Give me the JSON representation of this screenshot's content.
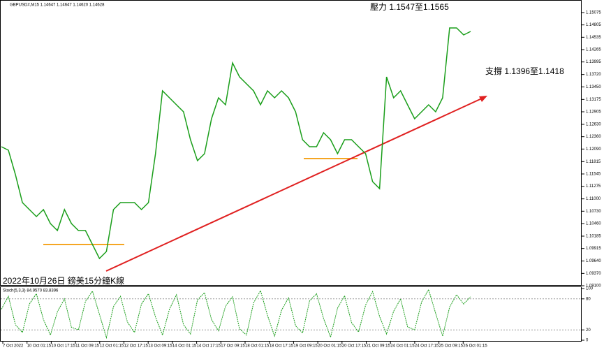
{
  "chart_data": {
    "type": "line",
    "title": "GBPUSD#,M15  1.14647 1.14647 1.14620 1.14628",
    "annotations": [
      "壓力 1.1547至1.1565",
      "支撐 1.1396至1.1418",
      "2022年10月26日 鎊美15分鐘K線"
    ],
    "xticks": [
      "7 Oct 2022",
      "10 Oct 01:15",
      "10 Oct 17:15",
      "11 Oct 09:15",
      "12 Oct 01:15",
      "12 Oct 17:15",
      "13 Oct 09:15",
      "14 Oct 01:15",
      "14 Oct 17:15",
      "17 Oct 09:15",
      "18 Oct 01:15",
      "18 Oct 17:15",
      "19 Oct 09:15",
      "20 Oct 01:15",
      "20 Oct 17:15",
      "21 Oct 09:15",
      "24 Oct 01:15",
      "24 Oct 17:15",
      "25 Oct 09:15",
      "26 Oct 01:15"
    ],
    "series": [
      {
        "color": "#1a9e1a",
        "values": [
          1.12141,
          1.12065,
          1.1153,
          1.10919,
          1.10766,
          1.10613,
          1.10766,
          1.1046,
          1.10307,
          1.10766,
          1.1046,
          1.10307,
          1.10307,
          1.10002,
          1.09696,
          1.09849,
          1.10766,
          1.10919,
          1.10919,
          1.10919,
          1.10766,
          1.10919,
          1.11988,
          1.13364,
          1.13211,
          1.13058,
          1.12905,
          1.12294,
          1.11835,
          1.11988,
          1.12752,
          1.13211,
          1.13058,
          1.13975,
          1.13669,
          1.13516,
          1.13364,
          1.13058,
          1.13364,
          1.13211,
          1.13364,
          1.13211,
          1.12905,
          1.12294,
          1.12141,
          1.12141,
          1.12447,
          1.12294,
          1.11988,
          1.12294,
          1.12294,
          1.12141,
          1.11988,
          1.11377,
          1.11224,
          1.13669,
          1.13211,
          1.13364,
          1.13058,
          1.12752,
          1.12905,
          1.13058,
          1.12905,
          1.13211,
          1.14739,
          1.14739,
          1.14586,
          1.14662
        ]
      }
    ],
    "ylim": [
      1.091,
      1.1535
    ],
    "yticks": [
      1.15075,
      1.14805,
      1.14535,
      1.14265,
      1.13995,
      {
        "value": 1.1372,
        "label": "1.13720"
      },
      {
        "value": 1.1345,
        "label": "1.13450"
      },
      1.13175,
      1.12905,
      {
        "value": 1.1263,
        "label": "1.12630"
      },
      {
        "value": 1.1236,
        "label": "1.12360"
      },
      {
        "value": 1.1209,
        "label": "1.12090"
      },
      1.11815,
      1.11545,
      1.11275,
      {
        "value": 1.11,
        "label": "1.11000"
      },
      {
        "value": 1.1073,
        "label": "1.10730"
      },
      {
        "value": 1.1046,
        "label": "1.10460"
      },
      1.10185,
      1.09915,
      {
        "value": 1.0964,
        "label": "1.09640"
      },
      {
        "value": 1.0937,
        "label": "1.09370"
      },
      {
        "value": 1.091,
        "label": "1.09100"
      }
    ],
    "stoch": {
      "name": "Stoch(5,3,3) 84.9570 83.8396",
      "color": "#1a9e1a",
      "values": [
        60,
        85,
        30,
        15,
        70,
        90,
        40,
        10,
        55,
        80,
        25,
        20,
        75,
        95,
        50,
        5,
        65,
        85,
        35,
        15,
        70,
        90,
        45,
        10,
        60,
        88,
        30,
        12,
        78,
        92,
        40,
        18,
        66,
        84,
        22,
        10,
        72,
        96,
        48,
        8,
        58,
        82,
        28,
        14,
        76,
        90,
        42,
        6,
        62,
        86,
        34,
        16,
        68,
        94,
        46,
        12,
        56,
        80,
        26,
        20,
        74,
        98,
        52,
        8,
        64,
        88,
        70,
        84
      ],
      "ylim": [
        0,
        100
      ],
      "yticks": [
        100,
        80,
        20,
        0
      ]
    }
  }
}
